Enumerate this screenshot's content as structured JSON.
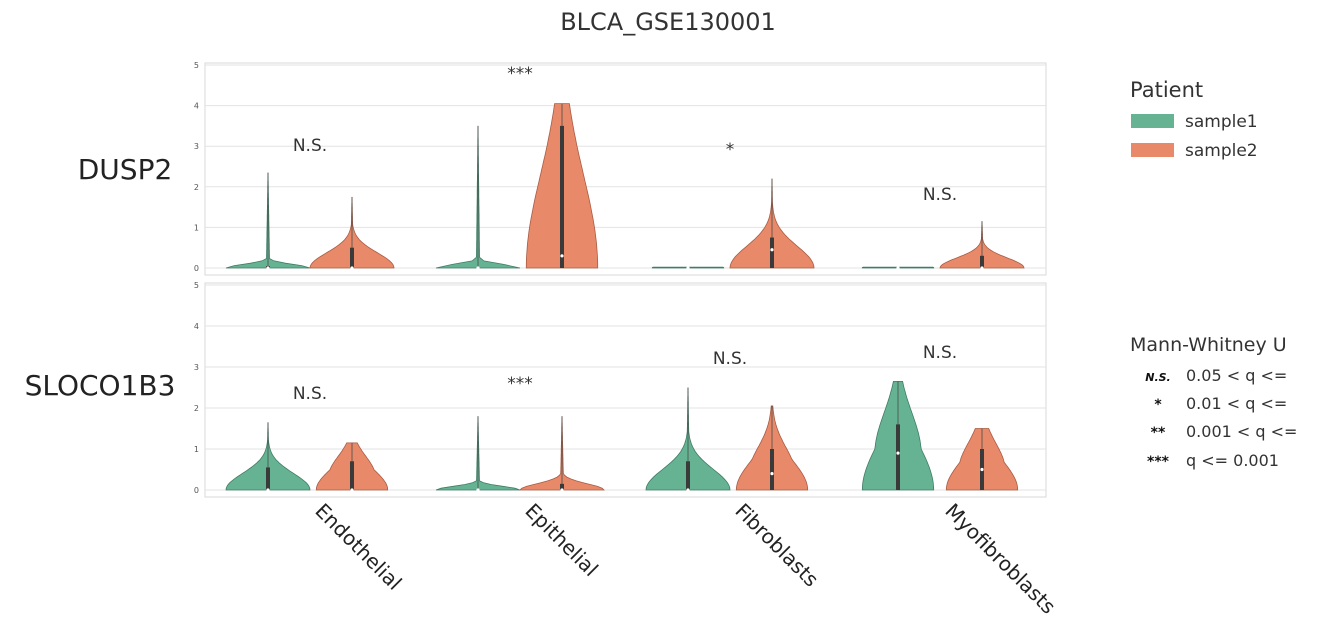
{
  "chart_data": {
    "type": "violin",
    "title": "BLCA_GSE130001",
    "categories": [
      "Endothelial",
      "Epithelial",
      "Fibroblasts",
      "Myofibroblasts"
    ],
    "ylim": [
      0,
      5
    ],
    "yticks": [
      "0",
      "1",
      "2",
      "3",
      "4",
      "5"
    ],
    "grid": true,
    "legend": {
      "position": "right",
      "title": "Patient",
      "items": [
        {
          "label": "sample1",
          "color": "#66b394"
        },
        {
          "label": "sample2",
          "color": "#e8896a"
        }
      ]
    },
    "significance_legend": {
      "title": "Mann-Whitney U",
      "items": [
        {
          "symbol": "N.S.",
          "label": "0.05 < q <="
        },
        {
          "symbol": "*",
          "label": "0.01 < q <="
        },
        {
          "symbol": "**",
          "label": "0.001 < q <="
        },
        {
          "symbol": "***",
          "label": "q <= 0.001"
        }
      ]
    },
    "panels": [
      {
        "gene": "DUSP2",
        "annotations": [
          "N.S.",
          "***",
          "*",
          "N.S."
        ],
        "series": [
          {
            "name": "sample1",
            "groups": [
              {
                "max": 2.35,
                "median": 0.0,
                "q1": 0.0,
                "q3": 0.05
              },
              {
                "max": 3.5,
                "median": 0.0,
                "q1": 0.0,
                "q3": 0.0
              },
              {
                "max": 0.02,
                "median": 0.0,
                "q1": 0.0,
                "q3": 0.0
              },
              {
                "max": 0.02,
                "median": 0.0,
                "q1": 0.0,
                "q3": 0.0
              }
            ]
          },
          {
            "name": "sample2",
            "groups": [
              {
                "max": 1.75,
                "median": 0.0,
                "q1": 0.0,
                "q3": 0.5
              },
              {
                "max": 4.05,
                "median": 0.3,
                "q1": 0.0,
                "q3": 3.5
              },
              {
                "max": 2.2,
                "median": 0.45,
                "q1": 0.0,
                "q3": 0.75
              },
              {
                "max": 1.15,
                "median": 0.0,
                "q1": 0.0,
                "q3": 0.3
              }
            ]
          }
        ]
      },
      {
        "gene": "SLOCO1B3",
        "annotations": [
          "N.S.",
          "***",
          "N.S.",
          "N.S."
        ],
        "series": [
          {
            "name": "sample1",
            "groups": [
              {
                "max": 1.65,
                "median": 0.0,
                "q1": 0.0,
                "q3": 0.55
              },
              {
                "max": 1.8,
                "median": 0.0,
                "q1": 0.0,
                "q3": 0.0
              },
              {
                "max": 2.5,
                "median": 0.0,
                "q1": 0.0,
                "q3": 0.7
              },
              {
                "max": 2.65,
                "median": 0.9,
                "q1": 0.0,
                "q3": 1.6
              }
            ]
          },
          {
            "name": "sample2",
            "groups": [
              {
                "max": 1.15,
                "median": 0.0,
                "q1": 0.0,
                "q3": 0.7
              },
              {
                "max": 1.8,
                "median": 0.0,
                "q1": 0.0,
                "q3": 0.15
              },
              {
                "max": 2.05,
                "median": 0.4,
                "q1": 0.0,
                "q3": 1.0
              },
              {
                "max": 1.5,
                "median": 0.5,
                "q1": 0.0,
                "q3": 1.0
              }
            ]
          }
        ]
      }
    ]
  }
}
